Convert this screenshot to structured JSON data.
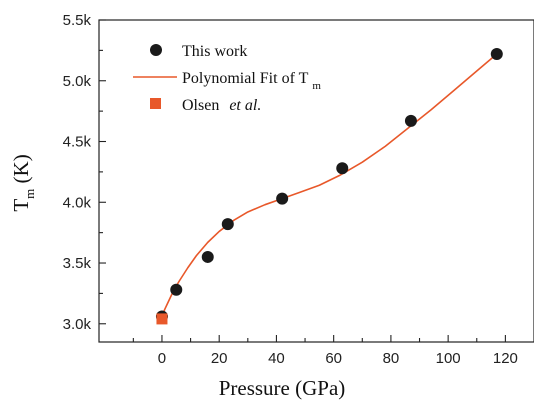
{
  "chart_data": {
    "type": "scatter",
    "xlabel": "Pressure (GPa)",
    "ylabel_main": "T",
    "ylabel_sub": "m",
    "ylabel_unit": " (K)",
    "xlim": [
      -22,
      130
    ],
    "ylim": [
      2.85,
      5.5
    ],
    "xticks": [
      0,
      20,
      40,
      60,
      80,
      100,
      120
    ],
    "xtick_labels": [
      "0",
      "20",
      "40",
      "60",
      "80",
      "100",
      "120"
    ],
    "yticks": [
      3.0,
      3.5,
      4.0,
      4.5,
      5.0,
      5.5
    ],
    "ytick_labels": [
      "3.0k",
      "3.5k",
      "4.0k",
      "4.5k",
      "5.0k",
      "5.5k"
    ],
    "grid": false,
    "legend_position": "top-left",
    "series": [
      {
        "name": "This work",
        "kind": "points",
        "marker": "circle",
        "color": "#1a1a1a",
        "x": [
          0,
          5,
          16,
          23,
          42,
          63,
          87,
          117
        ],
        "y": [
          3.06,
          3.28,
          3.55,
          3.82,
          4.03,
          4.28,
          4.67,
          5.22
        ]
      },
      {
        "name_prefix": "Polynomial Fit of T",
        "name_sub": "m",
        "kind": "line",
        "color": "#e8582a",
        "x": [
          0,
          1,
          2,
          4,
          6,
          9,
          12,
          16,
          20,
          25,
          30,
          36,
          42,
          48,
          55,
          62,
          70,
          78,
          86,
          94,
          102,
          110,
          117
        ],
        "y": [
          3.06,
          3.12,
          3.17,
          3.27,
          3.35,
          3.46,
          3.56,
          3.67,
          3.76,
          3.85,
          3.92,
          3.98,
          4.03,
          4.08,
          4.14,
          4.22,
          4.33,
          4.46,
          4.61,
          4.76,
          4.92,
          5.08,
          5.22
        ]
      },
      {
        "name_prefix": "Olsen",
        "name_italic": "et al.",
        "kind": "points",
        "marker": "square",
        "color": "#e8582a",
        "x": [
          0
        ],
        "y": [
          3.04
        ]
      }
    ]
  }
}
